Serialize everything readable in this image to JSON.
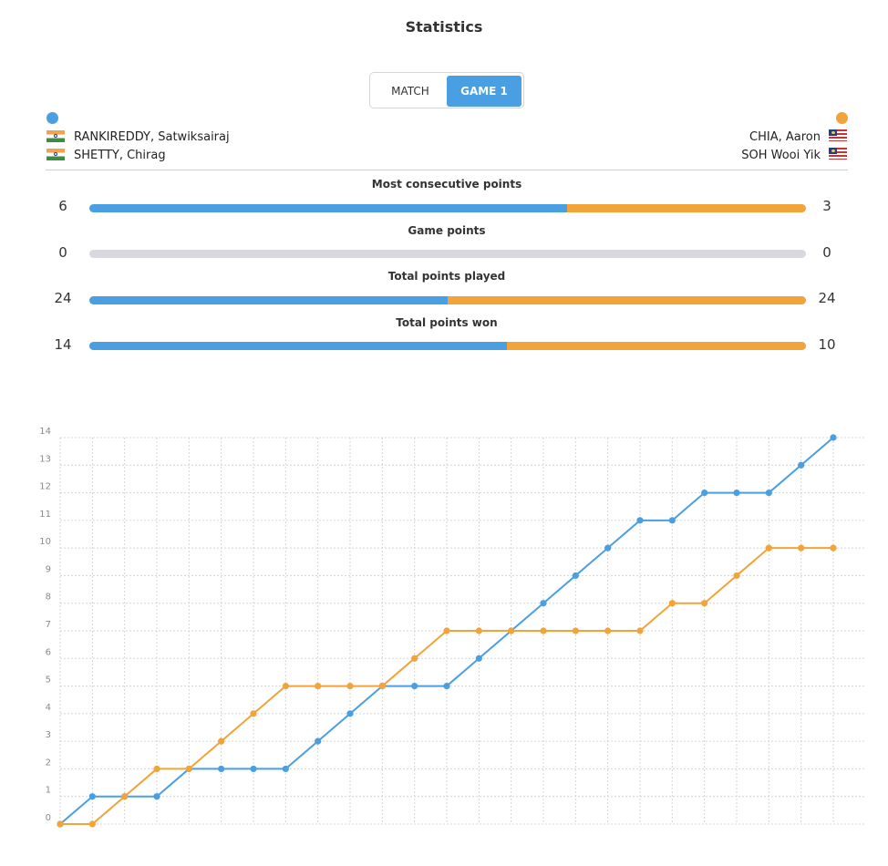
{
  "header": {
    "title": "Statistics"
  },
  "tabs": [
    {
      "label": "MATCH",
      "active": false
    },
    {
      "label": "GAME 1",
      "active": true
    }
  ],
  "teams": {
    "left": {
      "color": "#4a9fe3",
      "players": [
        {
          "name": "RANKIREDDY, Satwiksairaj",
          "flag": "india-flag-icon"
        },
        {
          "name": "SHETTY, Chirag",
          "flag": "india-flag-icon"
        }
      ]
    },
    "right": {
      "color": "#f2a33a",
      "players": [
        {
          "name": "CHIA, Aaron",
          "flag": "malaysia-flag-icon"
        },
        {
          "name": "SOH Wooi Yik",
          "flag": "malaysia-flag-icon"
        }
      ]
    }
  },
  "stats": [
    {
      "label": "Most consecutive points",
      "left": "6",
      "right": "3",
      "left_share": 0.6667
    },
    {
      "label": "Game points",
      "left": "0",
      "right": "0",
      "left_share": null
    },
    {
      "label": "Total points played",
      "left": "24",
      "right": "24",
      "left_share": 0.5
    },
    {
      "label": "Total points won",
      "left": "14",
      "right": "10",
      "left_share": 0.5833
    }
  ],
  "chart_data": {
    "type": "line",
    "x": [
      0,
      1,
      2,
      3,
      4,
      5,
      6,
      7,
      8,
      9,
      10,
      11,
      12,
      13,
      14,
      15,
      16,
      17,
      18,
      19,
      20,
      21,
      22,
      23,
      24
    ],
    "ylim": [
      0,
      14
    ],
    "y_ticks": [
      "0",
      "1",
      "2",
      "3",
      "4",
      "5",
      "6",
      "7",
      "8",
      "9",
      "10",
      "11",
      "12",
      "13",
      "14"
    ],
    "grid": true,
    "series": [
      {
        "color": "#4a9fe3",
        "values": [
          0,
          1,
          1,
          1,
          2,
          2,
          2,
          2,
          3,
          4,
          5,
          5,
          5,
          6,
          7,
          8,
          9,
          10,
          11,
          11,
          12,
          12,
          12,
          13,
          14
        ]
      },
      {
        "color": "#f2a33a",
        "values": [
          0,
          0,
          1,
          2,
          2,
          3,
          4,
          5,
          5,
          5,
          5,
          6,
          7,
          7,
          7,
          7,
          7,
          7,
          7,
          8,
          8,
          9,
          10,
          10,
          10
        ]
      }
    ]
  }
}
